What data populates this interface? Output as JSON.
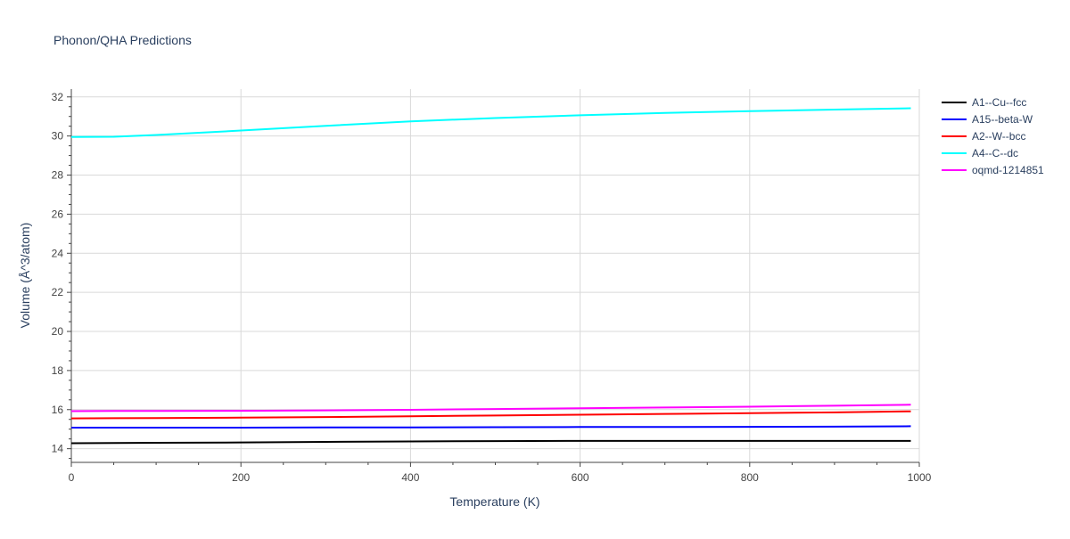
{
  "chart_data": {
    "type": "line",
    "title": "Phonon/QHA Predictions",
    "xlabel": "Temperature (K)",
    "ylabel": "Volume (Å^3/atom)",
    "xlim": [
      0,
      1000
    ],
    "ylim": [
      13.3,
      32.4
    ],
    "xticks": [
      0,
      200,
      400,
      600,
      800,
      1000
    ],
    "yticks": [
      14,
      16,
      18,
      20,
      22,
      24,
      26,
      28,
      30,
      32
    ],
    "grid": true,
    "legend_position": "top-right",
    "series": [
      {
        "name": "A1--Cu--fcc",
        "color": "#000000",
        "x": [
          0,
          50,
          100,
          200,
          300,
          400,
          500,
          600,
          700,
          800,
          900,
          990
        ],
        "y": [
          14.28,
          14.29,
          14.3,
          14.32,
          14.35,
          14.37,
          14.39,
          14.4,
          14.4,
          14.4,
          14.4,
          14.4
        ]
      },
      {
        "name": "A15--beta-W",
        "color": "#0000ff",
        "x": [
          0,
          50,
          100,
          200,
          300,
          400,
          500,
          600,
          700,
          800,
          900,
          990
        ],
        "y": [
          15.08,
          15.08,
          15.08,
          15.08,
          15.09,
          15.09,
          15.1,
          15.11,
          15.11,
          15.12,
          15.13,
          15.15
        ]
      },
      {
        "name": "A2--W--bcc",
        "color": "#ff0000",
        "x": [
          0,
          50,
          100,
          200,
          300,
          400,
          500,
          600,
          700,
          800,
          900,
          990
        ],
        "y": [
          15.55,
          15.56,
          15.57,
          15.59,
          15.62,
          15.66,
          15.7,
          15.74,
          15.78,
          15.82,
          15.86,
          15.91
        ]
      },
      {
        "name": "A4--C--dc",
        "color": "#00ffff",
        "x": [
          0,
          50,
          100,
          200,
          300,
          400,
          500,
          600,
          700,
          800,
          900,
          990
        ],
        "y": [
          29.95,
          29.96,
          30.05,
          30.28,
          30.52,
          30.75,
          30.92,
          31.06,
          31.18,
          31.27,
          31.35,
          31.42
        ]
      },
      {
        "name": "oqmd-1214851",
        "color": "#ff00ff",
        "x": [
          0,
          50,
          100,
          200,
          300,
          400,
          500,
          600,
          700,
          800,
          900,
          990
        ],
        "y": [
          15.92,
          15.93,
          15.93,
          15.94,
          15.96,
          15.99,
          16.03,
          16.07,
          16.11,
          16.15,
          16.2,
          16.25
        ]
      }
    ]
  }
}
